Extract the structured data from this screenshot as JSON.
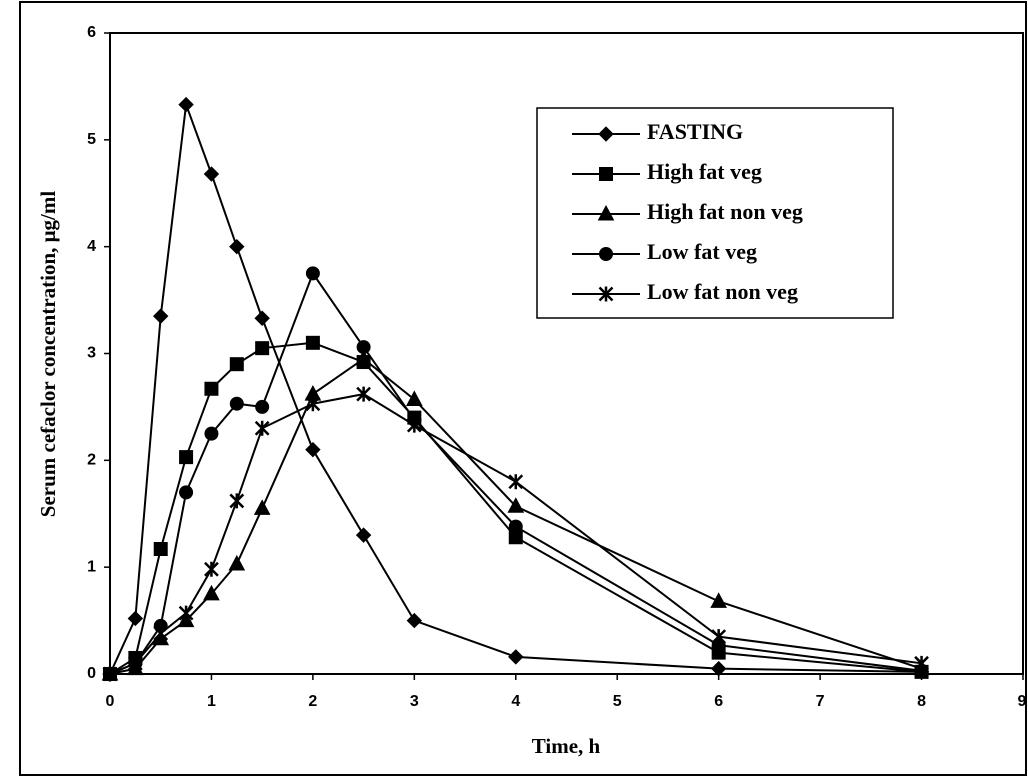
{
  "chart_data": {
    "type": "line",
    "xlabel": "Time, h",
    "ylabel": "Serum cefaclor concentration, μg/ml",
    "x": [
      0,
      0.25,
      0.5,
      0.75,
      1,
      1.25,
      1.5,
      2,
      2.5,
      3,
      4,
      6,
      8
    ],
    "series": [
      {
        "name": "FASTING",
        "color": "#000000",
        "marker": "diamond",
        "values": [
          0,
          0.52,
          3.35,
          5.33,
          4.68,
          4.0,
          3.33,
          2.1,
          1.3,
          0.5,
          0.16,
          0.05,
          0.02
        ]
      },
      {
        "name": "High fat veg",
        "color": "#000000",
        "marker": "square",
        "values": [
          0,
          0.15,
          1.17,
          2.03,
          2.67,
          2.9,
          3.05,
          3.1,
          2.92,
          2.4,
          1.28,
          0.2,
          0.02
        ]
      },
      {
        "name": "High fat non veg",
        "color": "#000000",
        "marker": "triangle",
        "values": [
          0,
          0.05,
          0.33,
          0.5,
          0.75,
          1.03,
          1.55,
          2.62,
          2.95,
          2.57,
          1.57,
          0.68,
          0.05
        ]
      },
      {
        "name": "Low fat veg",
        "color": "#000000",
        "marker": "circle",
        "values": [
          0,
          0.1,
          0.45,
          1.7,
          2.25,
          2.53,
          2.5,
          3.75,
          3.06,
          2.38,
          1.38,
          0.27,
          0.03
        ]
      },
      {
        "name": "Low fat non veg",
        "color": "#000000",
        "marker": "asterisk",
        "values": [
          0,
          0.1,
          0.38,
          0.57,
          0.98,
          1.62,
          2.3,
          2.53,
          2.62,
          2.33,
          1.8,
          0.35,
          0.1
        ]
      }
    ],
    "xlim": [
      0,
      9
    ],
    "xticks": [
      0,
      1,
      2,
      3,
      4,
      5,
      6,
      7,
      8,
      9
    ],
    "ylim": [
      0,
      6
    ],
    "yticks": [
      0,
      1,
      2,
      3,
      4,
      5,
      6
    ],
    "grid": false,
    "legend": "upper right"
  }
}
